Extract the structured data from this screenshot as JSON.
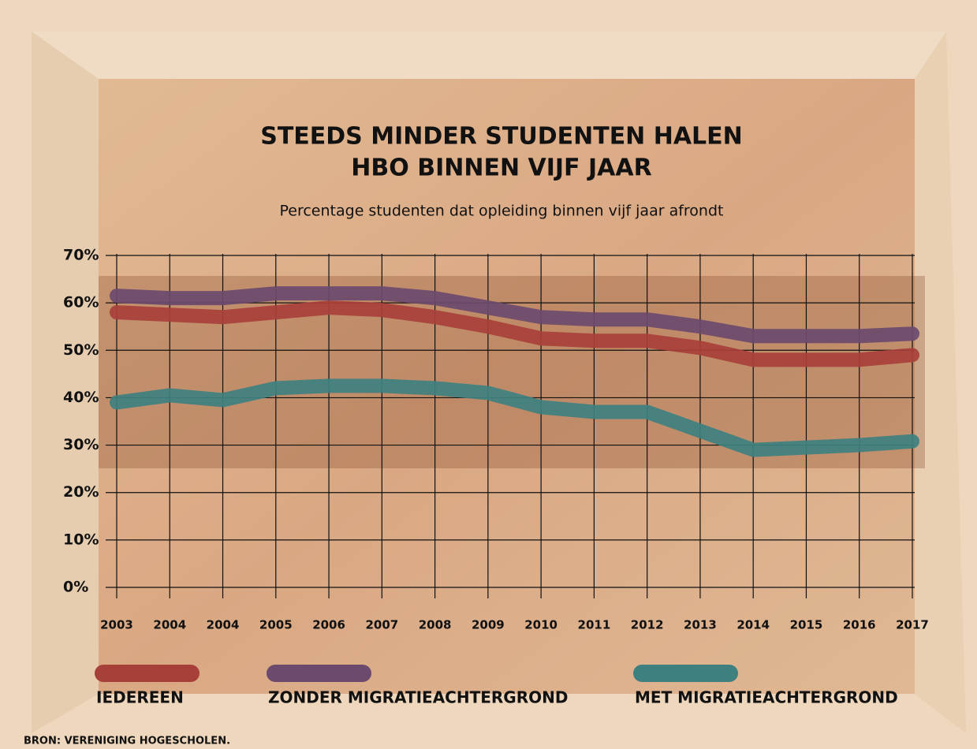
{
  "chart_data": {
    "type": "line",
    "title": [
      "STEEDS MINDER STUDENTEN HALEN",
      "HBO BINNEN VIJF JAAR"
    ],
    "subtitle": "Percentage studenten dat opleiding binnen vijf jaar afrondt",
    "categories": [
      "2003",
      "2004",
      "2004",
      "2005",
      "2006",
      "2007",
      "2008",
      "2009",
      "2010",
      "2011",
      "2012",
      "2013",
      "2014",
      "2015",
      "2016",
      "2017"
    ],
    "ylim": [
      0,
      70
    ],
    "yticks": [
      {
        "value": 0,
        "label": "0%"
      },
      {
        "value": 10,
        "label": "10%"
      },
      {
        "value": 20,
        "label": "20%"
      },
      {
        "value": 30,
        "label": "30%"
      },
      {
        "value": 40,
        "label": "40%"
      },
      {
        "value": 50,
        "label": "50%"
      },
      {
        "value": 60,
        "label": "60%"
      },
      {
        "value": 70,
        "label": "70%"
      }
    ],
    "grid": true,
    "series": [
      {
        "name": "IEDEREEN",
        "color": "#a8403a",
        "values": [
          58,
          57.5,
          57,
          58,
          59,
          58.5,
          57,
          55,
          52.5,
          52,
          52,
          50.5,
          48,
          48,
          48,
          49
        ]
      },
      {
        "name": "ZONDER MIGRATIEACHTERGROND",
        "color": "#6b4a6e",
        "values": [
          61.5,
          61,
          61,
          62,
          62,
          62,
          61,
          59,
          57,
          56.5,
          56.5,
          55,
          53,
          53,
          53,
          53.5
        ]
      },
      {
        "name": "MET MIGRATIEACHTERGROND",
        "color": "#3e8080",
        "values": [
          39,
          40.5,
          39.5,
          42,
          42.5,
          42.5,
          42,
          41,
          38,
          37,
          37,
          33,
          29,
          29.5,
          30,
          30.8
        ]
      }
    ],
    "source": "BRON: VERENIGING HOGESCHOLEN."
  }
}
